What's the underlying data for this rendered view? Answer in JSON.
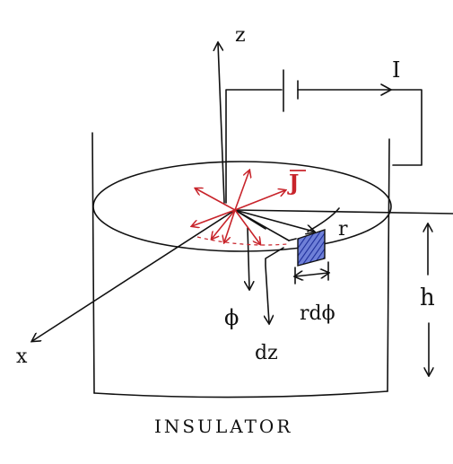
{
  "diagram": {
    "labels": {
      "z_axis": "z",
      "x_axis": "x",
      "current": "I",
      "current_density": "J",
      "radius": "r",
      "phi_dir": "ϕ",
      "dz": "dz",
      "rdphi": "rdϕ",
      "height": "h",
      "caption": "INSULATOR"
    },
    "colors": {
      "ink": "#111111",
      "current_density_arrows": "#c8242b",
      "element_fill": "#2a3fb0"
    }
  }
}
